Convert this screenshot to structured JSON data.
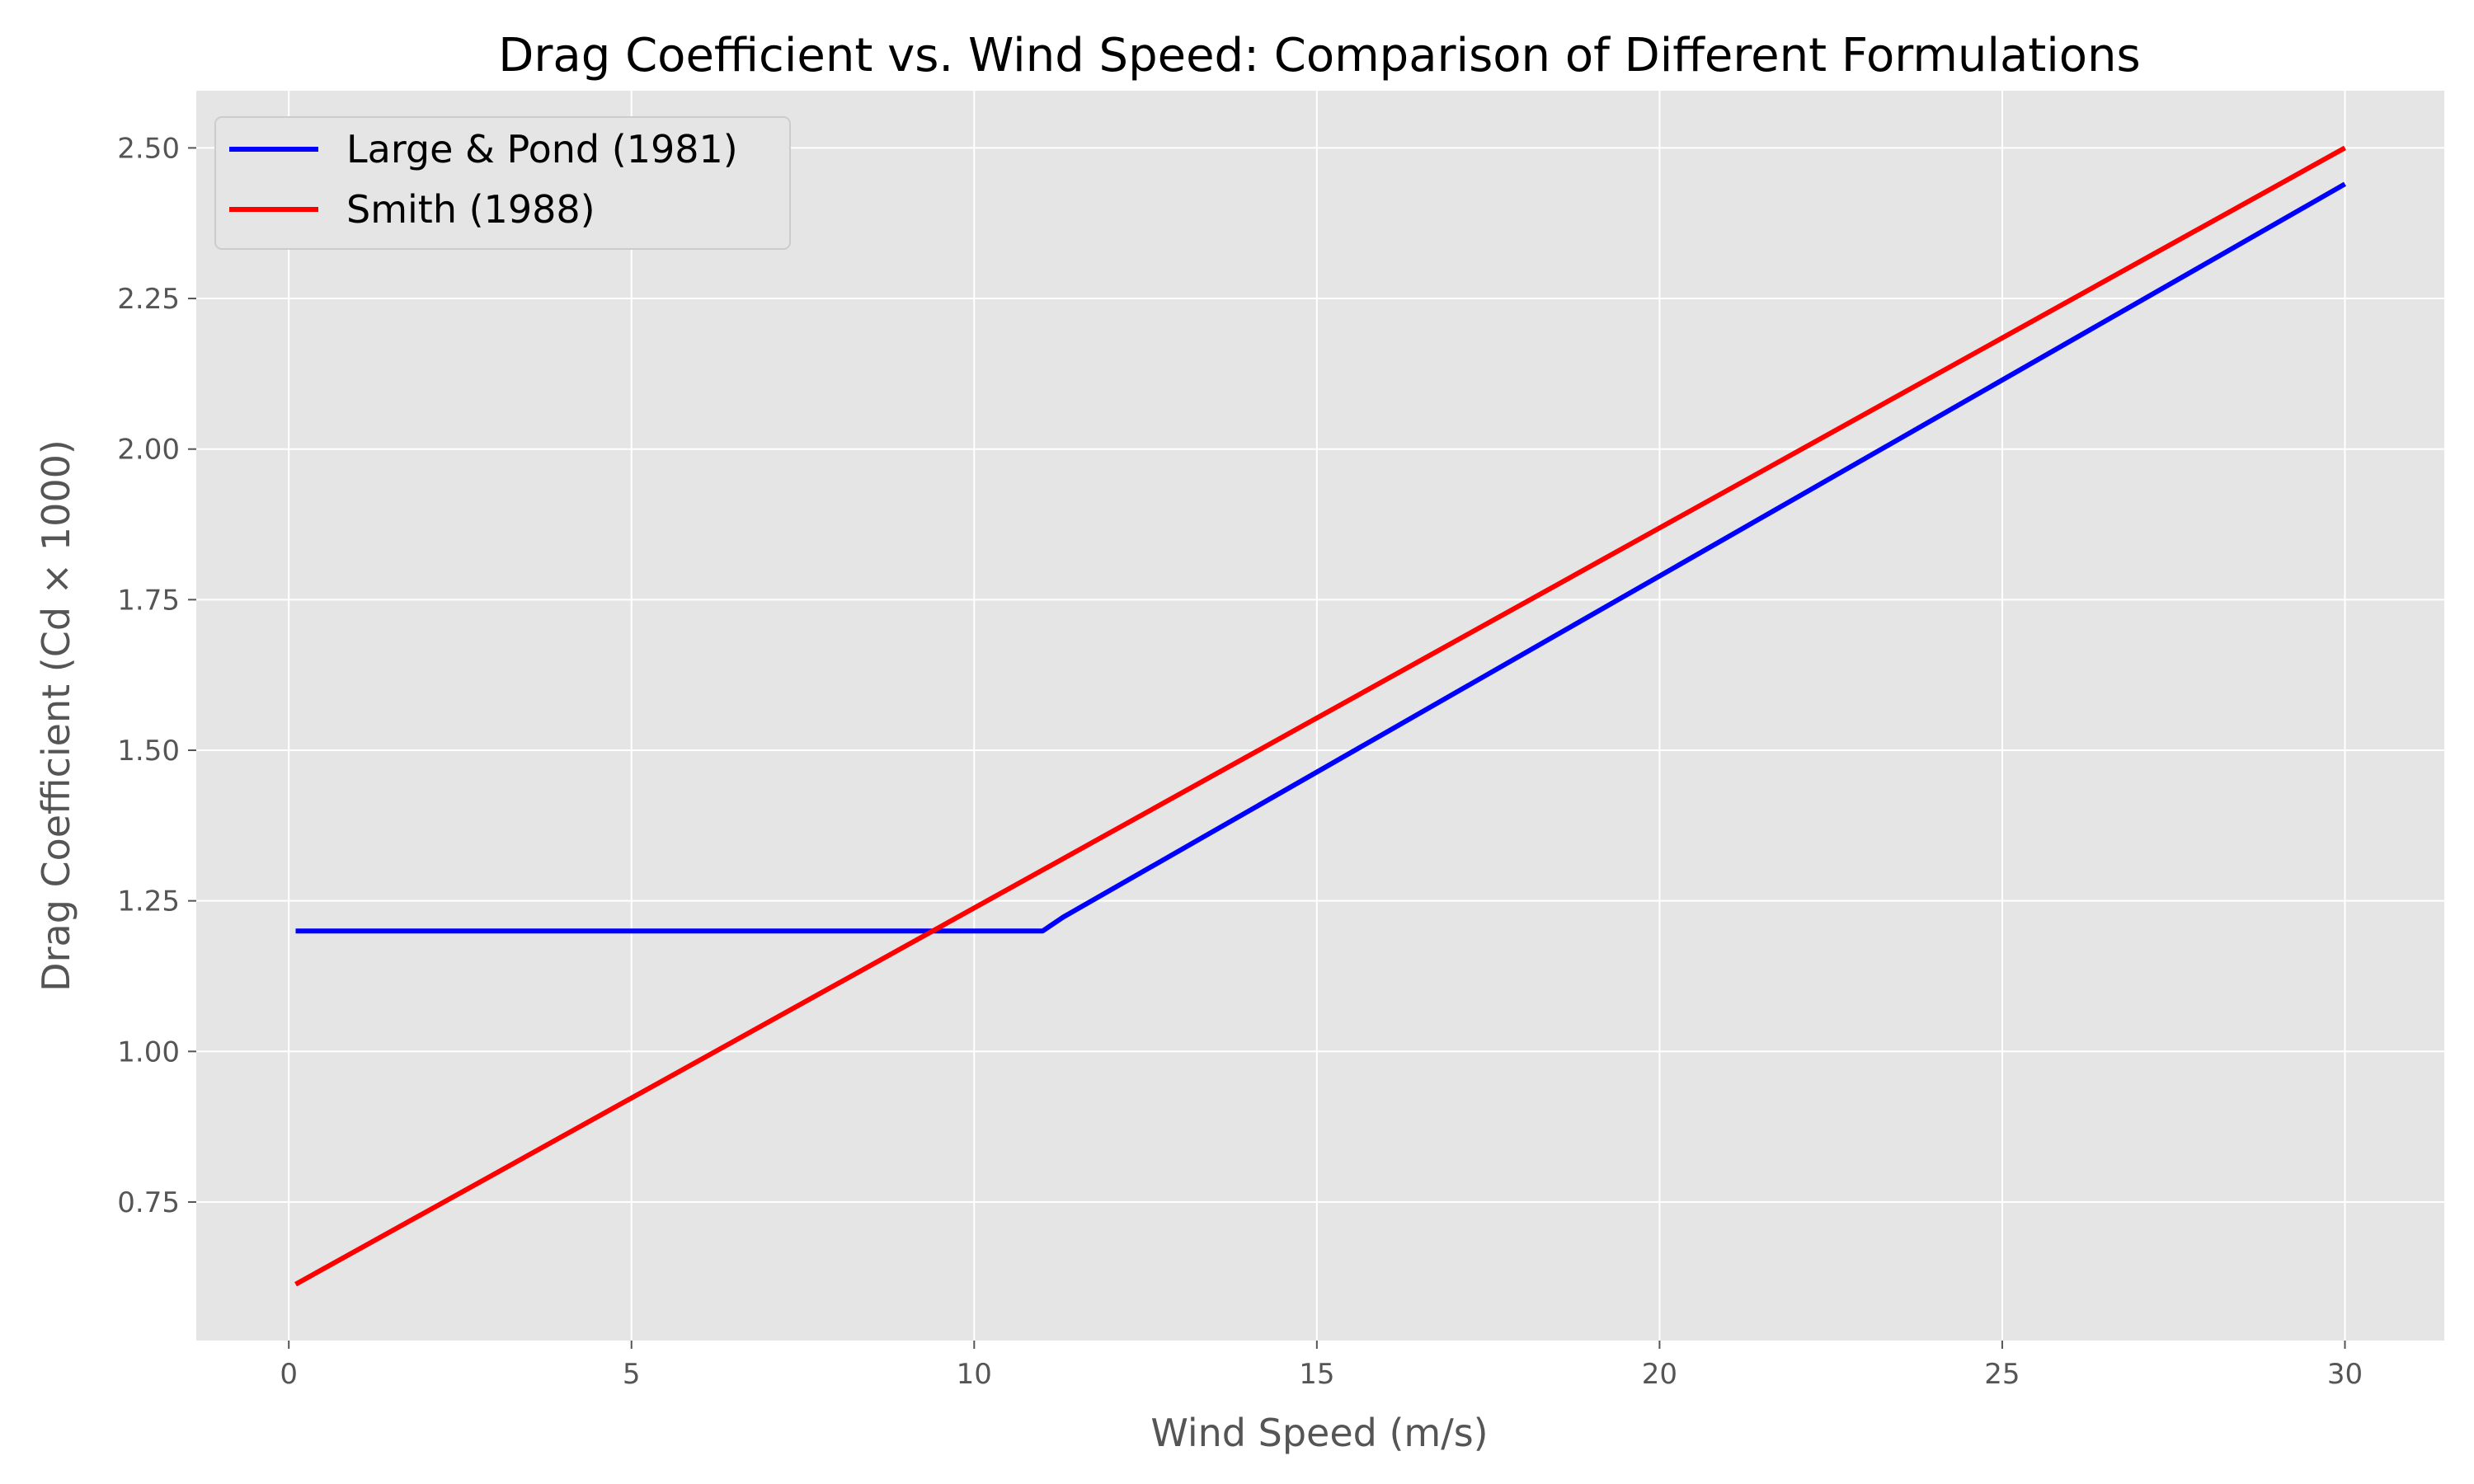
{
  "chart_data": {
    "type": "line",
    "title": "Drag Coefficient vs. Wind Speed: Comparison of Different Formulations",
    "xlabel": "Wind Speed (m/s)",
    "ylabel": "Drag Coefficient (Cd × 1000)",
    "xlim": [
      -1.35,
      31.45
    ],
    "ylim": [
      0.52,
      2.595
    ],
    "xticks": [
      0,
      5,
      10,
      15,
      20,
      25,
      30
    ],
    "yticks": [
      0.75,
      1.0,
      1.25,
      1.5,
      1.75,
      2.0,
      2.25,
      2.5
    ],
    "xtick_labels": [
      "0",
      "5",
      "10",
      "15",
      "20",
      "25",
      "30"
    ],
    "ytick_labels": [
      "0.75",
      "1.00",
      "1.25",
      "1.50",
      "1.75",
      "2.00",
      "2.25",
      "2.50"
    ],
    "grid": true,
    "legend_position": "top-left",
    "background": "#e5e5e5",
    "series": [
      {
        "name": "Large & Pond (1981)",
        "color": "#0000ff",
        "x": [
          0.1,
          11.0,
          11.3,
          30.0
        ],
        "y": [
          1.2,
          1.2,
          1.223,
          2.44
        ]
      },
      {
        "name": "Smith (1988)",
        "color": "#ff0000",
        "x": [
          0.1,
          30.0
        ],
        "y": [
          0.6135,
          2.5
        ]
      }
    ]
  }
}
